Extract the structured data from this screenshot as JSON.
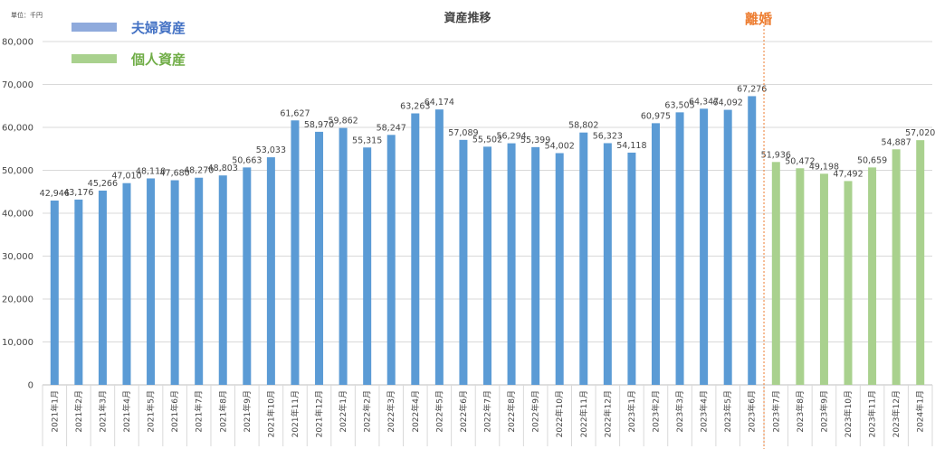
{
  "unit_label": "単位：千円",
  "colors": {
    "series1": "#5b9bd5",
    "series2": "#a9d18e",
    "divorce": "#ed7d31"
  },
  "chart_data": {
    "type": "bar",
    "title": "資産推移",
    "xlabel": "",
    "ylabel": "",
    "ylim": [
      0,
      80000
    ],
    "yticks": [
      0,
      10000,
      20000,
      30000,
      40000,
      50000,
      60000,
      70000,
      80000
    ],
    "ytick_labels": [
      "0",
      "10,000",
      "20,000",
      "30,000",
      "40,000",
      "50,000",
      "60,000",
      "70,000",
      "80,000"
    ],
    "grid": true,
    "legend_position": "top-left",
    "categories": [
      "2021年1月",
      "2021年2月",
      "2021年3月",
      "2021年4月",
      "2021年5月",
      "2021年6月",
      "2021年7月",
      "2021年8月",
      "2021年9月",
      "2021年10月",
      "2021年11月",
      "2021年12月",
      "2022年1月",
      "2022年2月",
      "2022年3月",
      "2022年4月",
      "2022年5月",
      "2022年6月",
      "2022年7月",
      "2022年8月",
      "2022年9月",
      "2022年10月",
      "2022年11月",
      "2022年12月",
      "2023年1月",
      "2023年2月",
      "2023年3月",
      "2023年4月",
      "2023年5月",
      "2023年6月",
      "2023年7月",
      "2023年8月",
      "2023年9月",
      "2023年10月",
      "2023年11月",
      "2023年12月",
      "2024年1月"
    ],
    "series": [
      {
        "name": "夫婦資産",
        "color": "#5b9bd5",
        "values": [
          42946,
          43176,
          45266,
          47010,
          48110,
          47680,
          48270,
          48803,
          50663,
          53033,
          61627,
          58970,
          59862,
          55315,
          58247,
          63263,
          64174,
          57089,
          55502,
          56294,
          55399,
          54002,
          58802,
          56323,
          54118,
          60975,
          63505,
          64347,
          64092,
          67276,
          null,
          null,
          null,
          null,
          null,
          null,
          null
        ],
        "labels": [
          "42,946",
          "43,176",
          "45,266",
          "47,010",
          "48,110",
          "47,680",
          "48,270",
          "48,803",
          "50,663",
          "53,033",
          "61,627",
          "58,970",
          "59,862",
          "55,315",
          "58,247",
          "63,263",
          "64,174",
          "57,089",
          "55,502",
          "56,294",
          "55,399",
          "54,002",
          "58,802",
          "56,323",
          "54,118",
          "60,975",
          "63,505",
          "64,347",
          "64,092",
          "67,276",
          null,
          null,
          null,
          null,
          null,
          null,
          null
        ]
      },
      {
        "name": "個人資産",
        "color": "#a9d18e",
        "values": [
          null,
          null,
          null,
          null,
          null,
          null,
          null,
          null,
          null,
          null,
          null,
          null,
          null,
          null,
          null,
          null,
          null,
          null,
          null,
          null,
          null,
          null,
          null,
          null,
          null,
          null,
          null,
          null,
          null,
          null,
          51936,
          50472,
          49198,
          47492,
          50659,
          54887,
          57020
        ],
        "labels": [
          null,
          null,
          null,
          null,
          null,
          null,
          null,
          null,
          null,
          null,
          null,
          null,
          null,
          null,
          null,
          null,
          null,
          null,
          null,
          null,
          null,
          null,
          null,
          null,
          null,
          null,
          null,
          null,
          null,
          null,
          "51,936",
          "50,472",
          "49,198",
          "47,492",
          "50,659",
          "54,887",
          "57,020"
        ]
      }
    ],
    "annotations": [
      {
        "text": "離婚",
        "between": [
          "2023年6月",
          "2023年7月"
        ]
      }
    ]
  }
}
